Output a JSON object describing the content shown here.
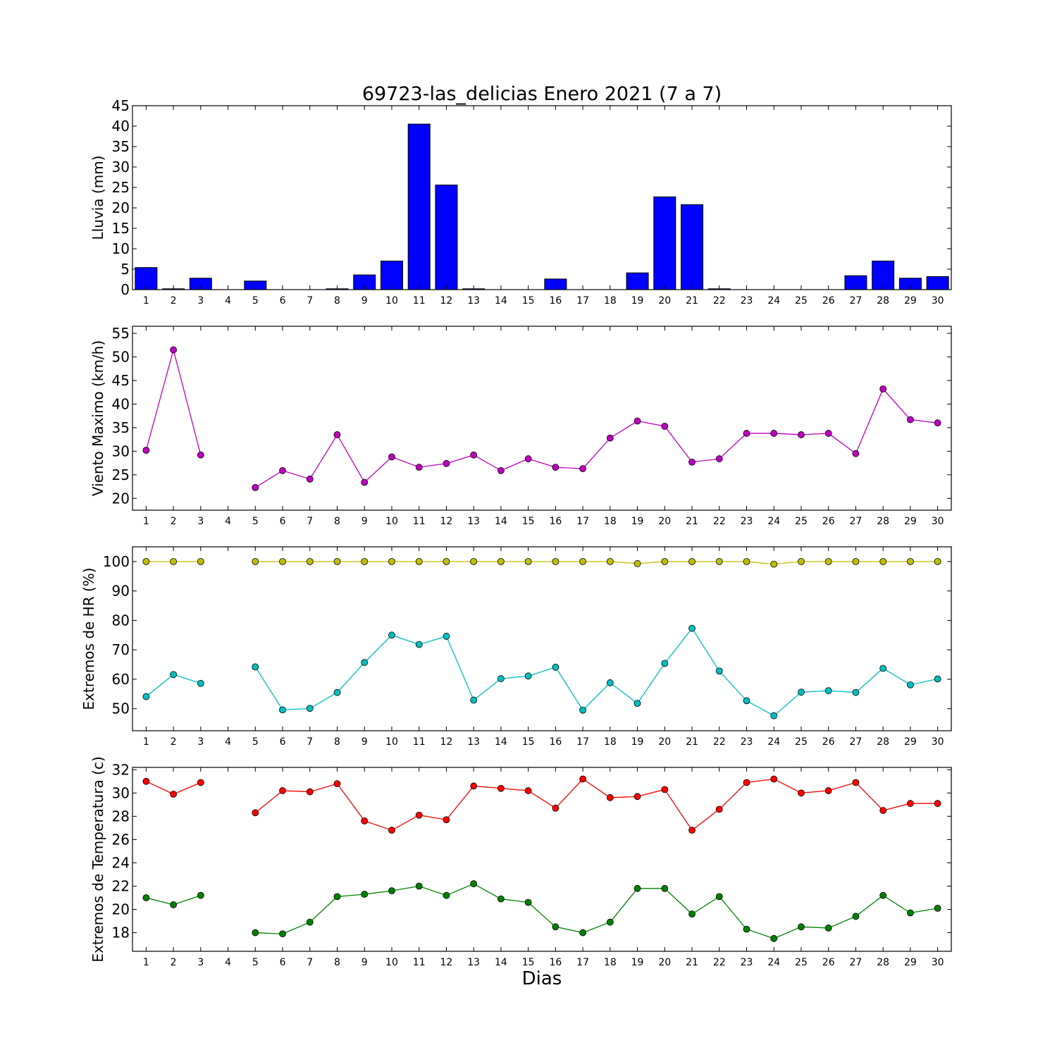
{
  "title": "69723-las_delicias Enero 2021  (7 a 7)",
  "xlabel": "Dias",
  "chart_data": [
    {
      "type": "bar",
      "ylabel": "Lluvia (mm)",
      "ylim": [
        0,
        45
      ],
      "yticks": [
        0,
        5,
        10,
        15,
        20,
        25,
        30,
        35,
        40,
        45
      ],
      "categories": [
        1,
        2,
        3,
        4,
        5,
        6,
        7,
        8,
        9,
        10,
        11,
        12,
        13,
        14,
        15,
        16,
        17,
        18,
        19,
        20,
        21,
        22,
        23,
        24,
        25,
        26,
        27,
        28,
        29,
        30
      ],
      "series": [
        {
          "color": "#0000ff",
          "values": [
            5.4,
            0.2,
            2.8,
            0,
            2.1,
            0,
            0,
            0.2,
            3.6,
            7.0,
            40.5,
            25.6,
            0.2,
            0,
            0,
            2.6,
            0,
            0,
            4.1,
            22.7,
            20.8,
            0.2,
            0,
            0,
            0,
            0,
            3.4,
            7.0,
            2.8,
            3.2
          ]
        }
      ]
    },
    {
      "type": "line",
      "ylabel": "Viento Maximo (km/h)",
      "ylim": [
        17.5,
        56.5
      ],
      "yticks": [
        20,
        25,
        30,
        35,
        40,
        45,
        50,
        55
      ],
      "categories": [
        1,
        2,
        3,
        4,
        5,
        6,
        7,
        8,
        9,
        10,
        11,
        12,
        13,
        14,
        15,
        16,
        17,
        18,
        19,
        20,
        21,
        22,
        23,
        24,
        25,
        26,
        27,
        28,
        29,
        30
      ],
      "series": [
        {
          "color": "#bf00bf",
          "values": [
            30.2,
            51.5,
            29.2,
            null,
            22.3,
            25.9,
            24.1,
            33.5,
            23.4,
            28.8,
            26.6,
            27.4,
            29.2,
            25.9,
            28.4,
            26.6,
            26.3,
            32.8,
            36.4,
            35.3,
            27.7,
            28.4,
            33.8,
            33.8,
            33.5,
            33.8,
            29.5,
            43.2,
            36.7,
            36.0
          ]
        }
      ]
    },
    {
      "type": "line",
      "ylabel": "Extremos de HR (%)",
      "ylim": [
        42.5,
        105
      ],
      "yticks": [
        50,
        60,
        70,
        80,
        90,
        100
      ],
      "categories": [
        1,
        2,
        3,
        4,
        5,
        6,
        7,
        8,
        9,
        10,
        11,
        12,
        13,
        14,
        15,
        16,
        17,
        18,
        19,
        20,
        21,
        22,
        23,
        24,
        25,
        26,
        27,
        28,
        29,
        30
      ],
      "series": [
        {
          "color": "#bfbf00",
          "values": [
            100,
            100,
            100,
            null,
            100,
            100,
            100,
            100,
            100,
            100,
            100,
            100,
            100,
            100,
            100,
            100,
            100,
            100,
            99.3,
            100,
            100,
            100,
            100,
            99.1,
            100,
            100,
            100,
            100,
            100,
            100
          ]
        },
        {
          "color": "#00bfbf",
          "values": [
            54.1,
            61.6,
            58.6,
            null,
            64.2,
            49.6,
            50.1,
            55.5,
            65.7,
            75.0,
            71.8,
            74.6,
            52.9,
            60.2,
            61.1,
            64.1,
            49.5,
            58.8,
            51.8,
            65.4,
            77.3,
            62.8,
            52.7,
            47.6,
            55.6,
            56.1,
            55.5,
            63.7,
            58.1,
            60.1
          ]
        }
      ]
    },
    {
      "type": "line",
      "ylabel": "Extremos de Temperatura (c)",
      "ylim": [
        16.4,
        32.2
      ],
      "yticks": [
        18,
        20,
        22,
        24,
        26,
        28,
        30,
        32
      ],
      "categories": [
        1,
        2,
        3,
        4,
        5,
        6,
        7,
        8,
        9,
        10,
        11,
        12,
        13,
        14,
        15,
        16,
        17,
        18,
        19,
        20,
        21,
        22,
        23,
        24,
        25,
        26,
        27,
        28,
        29,
        30
      ],
      "series": [
        {
          "color": "#ff0000",
          "values": [
            31.0,
            29.9,
            30.9,
            null,
            28.3,
            30.2,
            30.1,
            30.8,
            27.6,
            26.8,
            28.1,
            27.7,
            30.6,
            30.4,
            30.2,
            28.7,
            31.2,
            29.6,
            29.7,
            30.3,
            26.8,
            28.6,
            30.9,
            31.2,
            30.0,
            30.2,
            30.9,
            28.5,
            29.1,
            29.1
          ]
        },
        {
          "color": "#008000",
          "values": [
            21.0,
            20.4,
            21.2,
            null,
            18.0,
            17.9,
            18.9,
            21.1,
            21.3,
            21.6,
            22.0,
            21.2,
            22.2,
            20.9,
            20.6,
            18.5,
            18.0,
            18.9,
            21.8,
            21.8,
            19.6,
            21.1,
            18.3,
            17.5,
            18.5,
            18.4,
            19.4,
            21.2,
            19.7,
            20.1
          ]
        }
      ]
    }
  ]
}
